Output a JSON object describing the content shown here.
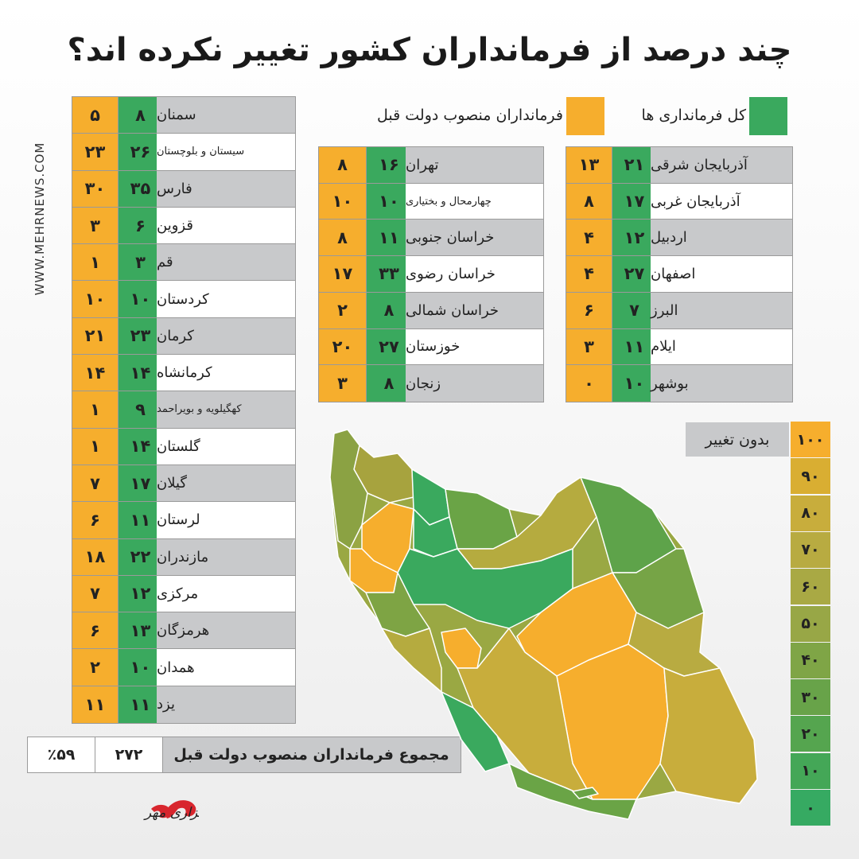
{
  "title": "چند درصد از فرمانداران کشور تغییر نکرده اند؟",
  "site": "WWW.MEHRNEWS.COM",
  "legend": {
    "total": "کل فرمانداری ها",
    "previous": "فرمانداران منصوب دولت قبل"
  },
  "colors": {
    "total": "#3aa95e",
    "previous": "#f6ae2d",
    "row_gray": "#c8c9cb"
  },
  "chart_data": {
    "type": "table",
    "columns": [
      "province",
      "total",
      "previous"
    ],
    "tables": [
      {
        "rows": [
          {
            "name": "آذربایجان شرقی",
            "total": "۲۱",
            "prev": "۱۳"
          },
          {
            "name": "آذربایجان غربی",
            "total": "۱۷",
            "prev": "۸"
          },
          {
            "name": "اردبیل",
            "total": "۱۲",
            "prev": "۴"
          },
          {
            "name": "اصفهان",
            "total": "۲۷",
            "prev": "۴"
          },
          {
            "name": "البرز",
            "total": "۷",
            "prev": "۶"
          },
          {
            "name": "ایلام",
            "total": "۱۱",
            "prev": "۳"
          },
          {
            "name": "بوشهر",
            "total": "۱۰",
            "prev": "۰"
          }
        ]
      },
      {
        "rows": [
          {
            "name": "تهران",
            "total": "۱۶",
            "prev": "۸"
          },
          {
            "name": "چهارمحال و بختیاری",
            "total": "۱۰",
            "prev": "۱۰"
          },
          {
            "name": "خراسان جنوبی",
            "total": "۱۱",
            "prev": "۸"
          },
          {
            "name": "خراسان رضوی",
            "total": "۳۳",
            "prev": "۱۷"
          },
          {
            "name": "خراسان شمالی",
            "total": "۸",
            "prev": "۲"
          },
          {
            "name": "خوزستان",
            "total": "۲۷",
            "prev": "۲۰"
          },
          {
            "name": "زنجان",
            "total": "۸",
            "prev": "۳"
          }
        ]
      },
      {
        "rows": [
          {
            "name": "سمنان",
            "total": "۸",
            "prev": "۵"
          },
          {
            "name": "سیستان و بلوچستان",
            "total": "۲۶",
            "prev": "۲۳"
          },
          {
            "name": "فارس",
            "total": "۳۵",
            "prev": "۳۰"
          },
          {
            "name": "قزوین",
            "total": "۶",
            "prev": "۳"
          },
          {
            "name": "قم",
            "total": "۳",
            "prev": "۱"
          },
          {
            "name": "کردستان",
            "total": "۱۰",
            "prev": "۱۰"
          },
          {
            "name": "کرمان",
            "total": "۲۳",
            "prev": "۲۱"
          },
          {
            "name": "کرمانشاه",
            "total": "۱۴",
            "prev": "۱۴"
          },
          {
            "name": "کهگیلویه و بویراحمد",
            "total": "۹",
            "prev": "۱"
          },
          {
            "name": "گلستان",
            "total": "۱۴",
            "prev": "۱"
          },
          {
            "name": "گیلان",
            "total": "۱۷",
            "prev": "۷"
          },
          {
            "name": "لرستان",
            "total": "۱۱",
            "prev": "۶"
          },
          {
            "name": "مازندران",
            "total": "۲۲",
            "prev": "۱۸"
          },
          {
            "name": "مرکزی",
            "total": "۱۲",
            "prev": "۷"
          },
          {
            "name": "هرمزگان",
            "total": "۱۳",
            "prev": "۶"
          },
          {
            "name": "همدان",
            "total": "۱۰",
            "prev": "۲"
          },
          {
            "name": "یزد",
            "total": "۱۱",
            "prev": "۱۱"
          }
        ]
      }
    ],
    "summary": {
      "label": "مجموع فرمانداران منصوب دولت قبل",
      "total": "۲۷۲",
      "percent": "٪۵۹"
    },
    "scale": {
      "no_change_label": "بدون تغییر",
      "ticks": [
        "۱۰۰",
        "۹۰",
        "۸۰",
        "۷۰",
        "۶۰",
        "۵۰",
        "۴۰",
        "۳۰",
        "۲۰",
        "۱۰",
        "۰"
      ],
      "colors": [
        "#f6ae2d",
        "#d9ae32",
        "#c8ad3c",
        "#b8ab41",
        "#a9a944",
        "#98a746",
        "#7fa546",
        "#68a349",
        "#55a54f",
        "#44a757",
        "#36aa62"
      ]
    }
  },
  "logo_text": "خبرگزاری مهر"
}
